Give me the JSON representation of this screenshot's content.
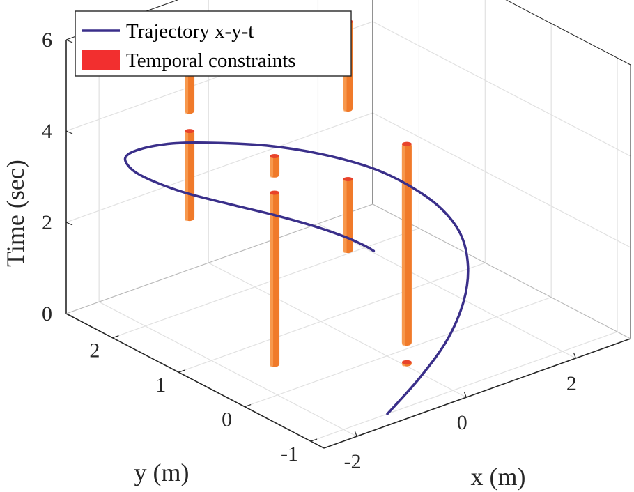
{
  "chart_data": {
    "type": "line3d",
    "xlabel": "x (m)",
    "ylabel": "y (m)",
    "zlabel": "Time (sec)",
    "xlim": [
      -2.6,
      3.0
    ],
    "ylim": [
      -1.2,
      2.7
    ],
    "zlim": [
      0,
      6
    ],
    "xticks": [
      -2,
      0,
      2
    ],
    "yticks": [
      -1,
      0,
      1,
      2
    ],
    "zticks": [
      0,
      2,
      4,
      6
    ],
    "grid": true,
    "legend_position": "top-left",
    "legend": [
      "Trajectory x-y-t",
      "Temporal constraints"
    ],
    "series": [
      {
        "name": "Trajectory x-y-t",
        "color": "#3a2f8a",
        "points": [
          [
            -1.2,
            -1.0,
            0.0
          ],
          [
            -0.4,
            -0.82,
            0.3
          ],
          [
            0.4,
            -0.58,
            0.62
          ],
          [
            1.1,
            -0.25,
            0.92
          ],
          [
            1.6,
            0.1,
            1.2
          ],
          [
            1.95,
            0.5,
            1.45
          ],
          [
            2.05,
            0.9,
            1.7
          ],
          [
            1.95,
            1.3,
            1.93
          ],
          [
            1.7,
            1.65,
            2.15
          ],
          [
            1.2,
            2.0,
            2.4
          ],
          [
            0.55,
            2.28,
            2.65
          ],
          [
            -0.2,
            2.45,
            2.9
          ],
          [
            -0.9,
            2.5,
            3.15
          ],
          [
            -1.6,
            2.42,
            3.38
          ],
          [
            -2.1,
            2.22,
            3.56
          ],
          [
            -2.35,
            1.9,
            3.64
          ],
          [
            -2.32,
            1.62,
            3.6
          ],
          [
            -2.05,
            1.35,
            3.43
          ],
          [
            -1.55,
            1.12,
            3.15
          ],
          [
            -0.9,
            0.95,
            2.75
          ],
          [
            -0.3,
            0.84,
            2.33
          ],
          [
            0.2,
            0.79,
            1.92
          ],
          [
            0.55,
            0.78,
            1.58
          ],
          [
            0.7,
            0.78,
            1.41
          ]
        ]
      }
    ],
    "constraints": {
      "name": "Temporal constraints",
      "color": "#f07a2a",
      "items": [
        {
          "x": -1.45,
          "y": 0.5,
          "t": [
            0.0,
            3.85
          ]
        },
        {
          "x": -1.45,
          "y": 0.5,
          "t": [
            4.15,
            4.65
          ]
        },
        {
          "x": -0.95,
          "y": 2.2,
          "t": [
            1.7,
            3.7
          ]
        },
        {
          "x": -0.95,
          "y": 2.2,
          "t": [
            4.05,
            6.0
          ]
        },
        {
          "x": 0.0,
          "y": -0.3,
          "t": [
            0.0,
            0.12
          ]
        },
        {
          "x": 0.0,
          "y": -0.3,
          "t": [
            0.45,
            4.9
          ]
        },
        {
          "x": 1.1,
          "y": 1.5,
          "t": [
            0.65,
            2.3
          ]
        },
        {
          "x": 1.1,
          "y": 1.5,
          "t": [
            3.75,
            5.75
          ]
        }
      ]
    }
  }
}
